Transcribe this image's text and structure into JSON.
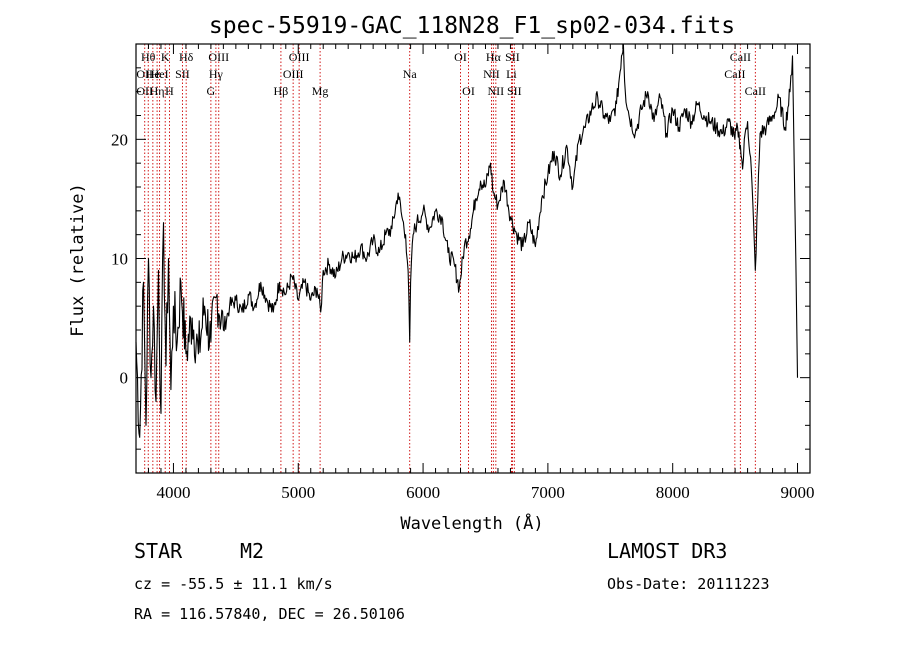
{
  "chart_data": {
    "type": "line",
    "title": "spec-55919-GAC_118N28_F1_sp02-034.fits",
    "xlabel": "Wavelength (Å)",
    "ylabel": "Flux (relative)",
    "xlim": [
      3700,
      9100
    ],
    "ylim": [
      -8,
      28
    ],
    "xticks": [
      4000,
      5000,
      6000,
      7000,
      8000,
      9000
    ],
    "yticks": [
      0,
      10,
      20
    ],
    "series": [
      {
        "name": "spectrum",
        "x": [
          3700,
          3730,
          3760,
          3780,
          3800,
          3820,
          3840,
          3860,
          3880,
          3900,
          3920,
          3940,
          3960,
          3980,
          4000,
          4030,
          4060,
          4100,
          4150,
          4200,
          4250,
          4300,
          4350,
          4400,
          4450,
          4500,
          4550,
          4600,
          4650,
          4700,
          4750,
          4800,
          4850,
          4900,
          4950,
          5000,
          5050,
          5100,
          5150,
          5180,
          5200,
          5250,
          5300,
          5350,
          5400,
          5450,
          5500,
          5550,
          5600,
          5650,
          5700,
          5750,
          5800,
          5830,
          5860,
          5880,
          5893,
          5900,
          5920,
          5950,
          6000,
          6050,
          6100,
          6150,
          6200,
          6250,
          6290,
          6330,
          6380,
          6420,
          6460,
          6500,
          6540,
          6563,
          6600,
          6650,
          6700,
          6750,
          6800,
          6850,
          6900,
          6950,
          7000,
          7050,
          7100,
          7150,
          7200,
          7250,
          7300,
          7350,
          7400,
          7450,
          7500,
          7550,
          7590,
          7605,
          7620,
          7650,
          7700,
          7750,
          7800,
          7850,
          7900,
          7950,
          8000,
          8050,
          8100,
          8150,
          8200,
          8250,
          8300,
          8350,
          8400,
          8450,
          8498,
          8520,
          8542,
          8560,
          8580,
          8600,
          8630,
          8662,
          8700,
          8750,
          8800,
          8830,
          8850,
          8900,
          8940,
          8960,
          8980,
          9000
        ],
        "values": [
          3,
          -5,
          8,
          -4,
          10,
          0,
          6,
          -2,
          9,
          -3,
          13,
          1,
          10,
          -1,
          6,
          3,
          8,
          2,
          5,
          2,
          6,
          3,
          7,
          4,
          6,
          6.5,
          5.5,
          7,
          6,
          8,
          6.5,
          5.5,
          8,
          7,
          8.5,
          6.5,
          8,
          6.5,
          7.5,
          5.5,
          9,
          9.5,
          8.5,
          10,
          10.5,
          10,
          11,
          10,
          11.5,
          10.5,
          12,
          12.5,
          15.5,
          13.5,
          12,
          9,
          3,
          8,
          12,
          13,
          14,
          12.5,
          14,
          13.5,
          10.5,
          9.5,
          7.5,
          11,
          12.5,
          15,
          16.5,
          16,
          18,
          15.5,
          14.5,
          16.5,
          13.5,
          12,
          11,
          13,
          11,
          15,
          17,
          19,
          17,
          19.5,
          16,
          20,
          21,
          22.5,
          23.5,
          22,
          21.5,
          23,
          27,
          28,
          24,
          22,
          20.5,
          22.5,
          24,
          21.5,
          23.5,
          20.5,
          22.5,
          21,
          22.5,
          21.5,
          23,
          22,
          21.5,
          21,
          20.5,
          21.5,
          20,
          21,
          19.5,
          17.5,
          20.5,
          21.5,
          17.5,
          9,
          20.5,
          21,
          22,
          22.5,
          23.5,
          21,
          24,
          27,
          14,
          0
        ]
      }
    ],
    "spectral_lines": [
      {
        "wl": 3770,
        "labels": [
          {
            "text": "OII",
            "row": 2
          },
          {
            "text": "OII",
            "row": 3
          }
        ]
      },
      {
        "wl": 3798,
        "labels": [
          {
            "text": "Hθ",
            "row": 1
          }
        ]
      },
      {
        "wl": 3835,
        "labels": [
          {
            "text": "He",
            "row": 2
          }
        ]
      },
      {
        "wl": 3869,
        "labels": [
          {
            "text": "Hη",
            "row": 3
          }
        ]
      },
      {
        "wl": 3889,
        "labels": [
          {
            "text": "HeI",
            "row": 2
          }
        ]
      },
      {
        "wl": 3934,
        "labels": [
          {
            "text": "K",
            "row": 1
          }
        ]
      },
      {
        "wl": 3968,
        "labels": [
          {
            "text": "H",
            "row": 3
          }
        ]
      },
      {
        "wl": 4072,
        "labels": [
          {
            "text": "SII",
            "row": 2
          }
        ]
      },
      {
        "wl": 4102,
        "labels": [
          {
            "text": "Hδ",
            "row": 1
          }
        ]
      },
      {
        "wl": 4300,
        "labels": [
          {
            "text": "G",
            "row": 3
          }
        ]
      },
      {
        "wl": 4340,
        "labels": [
          {
            "text": "Hγ",
            "row": 2
          }
        ]
      },
      {
        "wl": 4363,
        "labels": [
          {
            "text": "OIII",
            "row": 1
          }
        ]
      },
      {
        "wl": 4861,
        "labels": [
          {
            "text": "Hβ",
            "row": 3
          }
        ]
      },
      {
        "wl": 4959,
        "labels": [
          {
            "text": "OIII",
            "row": 2
          }
        ]
      },
      {
        "wl": 5007,
        "labels": [
          {
            "text": "OIII",
            "row": 1
          }
        ]
      },
      {
        "wl": 5175,
        "labels": [
          {
            "text": "Mg",
            "row": 3
          }
        ]
      },
      {
        "wl": 5893,
        "labels": [
          {
            "text": "Na",
            "row": 2
          }
        ]
      },
      {
        "wl": 6300,
        "labels": [
          {
            "text": "OI",
            "row": 1
          }
        ]
      },
      {
        "wl": 6364,
        "labels": [
          {
            "text": "OI",
            "row": 3
          }
        ]
      },
      {
        "wl": 6548,
        "labels": [
          {
            "text": "NII",
            "row": 2
          }
        ]
      },
      {
        "wl": 6563,
        "labels": [
          {
            "text": "Hα",
            "row": 1
          }
        ]
      },
      {
        "wl": 6583,
        "labels": [
          {
            "text": "NII",
            "row": 3
          }
        ]
      },
      {
        "wl": 6708,
        "labels": [
          {
            "text": "Li",
            "row": 2
          }
        ]
      },
      {
        "wl": 6716,
        "labels": [
          {
            "text": "SII",
            "row": 1
          }
        ]
      },
      {
        "wl": 6731,
        "labels": [
          {
            "text": "SII",
            "row": 3
          }
        ]
      },
      {
        "wl": 8498,
        "labels": [
          {
            "text": "CaII",
            "row": 2
          }
        ]
      },
      {
        "wl": 8542,
        "labels": [
          {
            "text": "CaII",
            "row": 1
          }
        ]
      },
      {
        "wl": 8662,
        "labels": [
          {
            "text": "CaII",
            "row": 3
          }
        ]
      }
    ]
  },
  "info": {
    "class": "STAR",
    "subclass": "M2",
    "survey": "LAMOST DR3",
    "cz": "cz = -55.5 ± 11.1 km/s",
    "obs_date": "Obs-Date: 20111223",
    "coords": "RA = 116.57840, DEC =  26.50106"
  },
  "colors": {
    "line": "#000000",
    "marker": "#cc0000"
  }
}
